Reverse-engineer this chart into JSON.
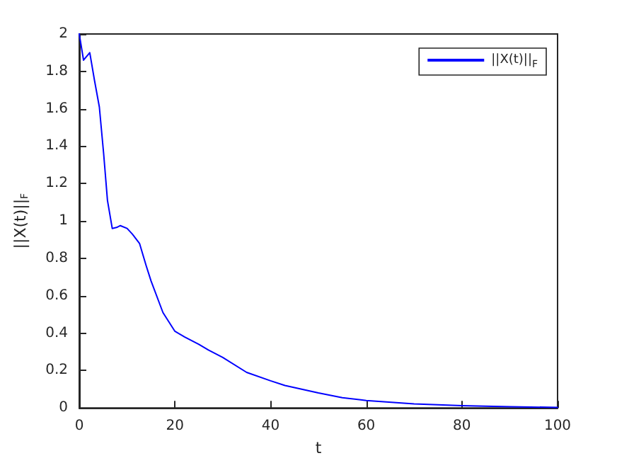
{
  "chart_data": {
    "type": "line",
    "xlabel": "t",
    "ylabel": "||X(t)||$_{F}$",
    "legend": "top right",
    "grid": false,
    "marker": "none",
    "line_style": "solid",
    "xlim": [
      0,
      100
    ],
    "xticks": [
      0,
      20,
      40,
      60,
      80,
      100
    ],
    "ylim": [
      0,
      2
    ],
    "yticks": [
      0,
      0.2,
      0.4,
      0.6,
      0.8,
      1,
      1.2,
      1.4,
      1.6,
      1.8,
      2
    ],
    "series": [
      {
        "name": "||X(t)||$_{F}$",
        "color": "#0000ff",
        "x": [
          0,
          0.9,
          2.2,
          3.2,
          4.2,
          5.1,
          5.9,
          6.9,
          7.8,
          8.6,
          10,
          11.1,
          12.6,
          14,
          15,
          17.5,
          20,
          22,
          25,
          27,
          30,
          35,
          40,
          43,
          50,
          55,
          60,
          70,
          80,
          90,
          100
        ],
        "values": [
          2,
          1.86,
          1.9,
          1.75,
          1.61,
          1.36,
          1.11,
          0.96,
          0.965,
          0.975,
          0.96,
          0.93,
          0.88,
          0.76,
          0.68,
          0.51,
          0.41,
          0.38,
          0.34,
          0.31,
          0.27,
          0.19,
          0.145,
          0.12,
          0.08,
          0.055,
          0.04,
          0.022,
          0.012,
          0.006,
          0.003
        ]
      }
    ]
  }
}
